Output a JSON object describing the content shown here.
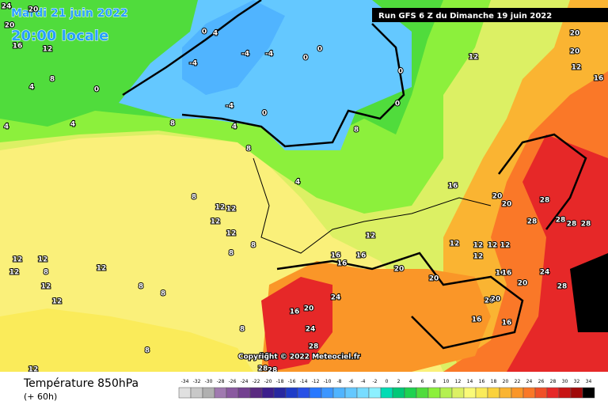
{
  "header": {
    "date": "Mardi 21 juin 2022",
    "time": "20:00 locale",
    "run": "Run GFS 6 Z du Dimanche 19 juin 2022"
  },
  "map": {
    "copyright": "Copyright © 2022 Meteociel.fr",
    "contour_labels": [
      24,
      20,
      20,
      16,
      12,
      8,
      4,
      0,
      4,
      4,
      0,
      4,
      -4,
      -4,
      -4,
      -4,
      4,
      0,
      0,
      0,
      0,
      0,
      8,
      8,
      8,
      4,
      12,
      20,
      20,
      12,
      16,
      16,
      20,
      20,
      28,
      28,
      28,
      28,
      28,
      24,
      28,
      8,
      12,
      12,
      12,
      12,
      8,
      8,
      12,
      12,
      12,
      8,
      12,
      12,
      12,
      8,
      8,
      16,
      16,
      16,
      12,
      20,
      20,
      12,
      12,
      12,
      12,
      12,
      16,
      16,
      20,
      20,
      20,
      16,
      16,
      24,
      20,
      16,
      24,
      28,
      8,
      8,
      12,
      28,
      28,
      20
    ]
  },
  "legend": {
    "title": "Température 850hPa",
    "lead": "(+ 60h)",
    "values": [
      -34,
      -32,
      -30,
      -28,
      -26,
      -24,
      -22,
      -20,
      -18,
      -16,
      -14,
      -12,
      -10,
      -8,
      -6,
      -4,
      -2,
      0,
      2,
      4,
      6,
      8,
      10,
      12,
      14,
      16,
      18,
      20,
      22,
      24,
      26,
      28,
      30,
      32,
      34
    ],
    "colors": [
      "#e0e0e0",
      "#c8c8c8",
      "#b0b0b0",
      "#a07ab0",
      "#8a5aa0",
      "#734090",
      "#5a2a80",
      "#3c1e8c",
      "#2828a0",
      "#1e3cc8",
      "#2850e6",
      "#2878ff",
      "#3c96ff",
      "#50b4ff",
      "#64c8ff",
      "#78dcff",
      "#8cf0ff",
      "#00dcb4",
      "#00c878",
      "#1ed250",
      "#50dc3c",
      "#8cf03c",
      "#b4f050",
      "#dcf064",
      "#fafa78",
      "#faeb5a",
      "#fad23c",
      "#fab432",
      "#fa9628",
      "#fa7828",
      "#f05028",
      "#e62828",
      "#c81414",
      "#a00a0a",
      "#000000"
    ]
  }
}
